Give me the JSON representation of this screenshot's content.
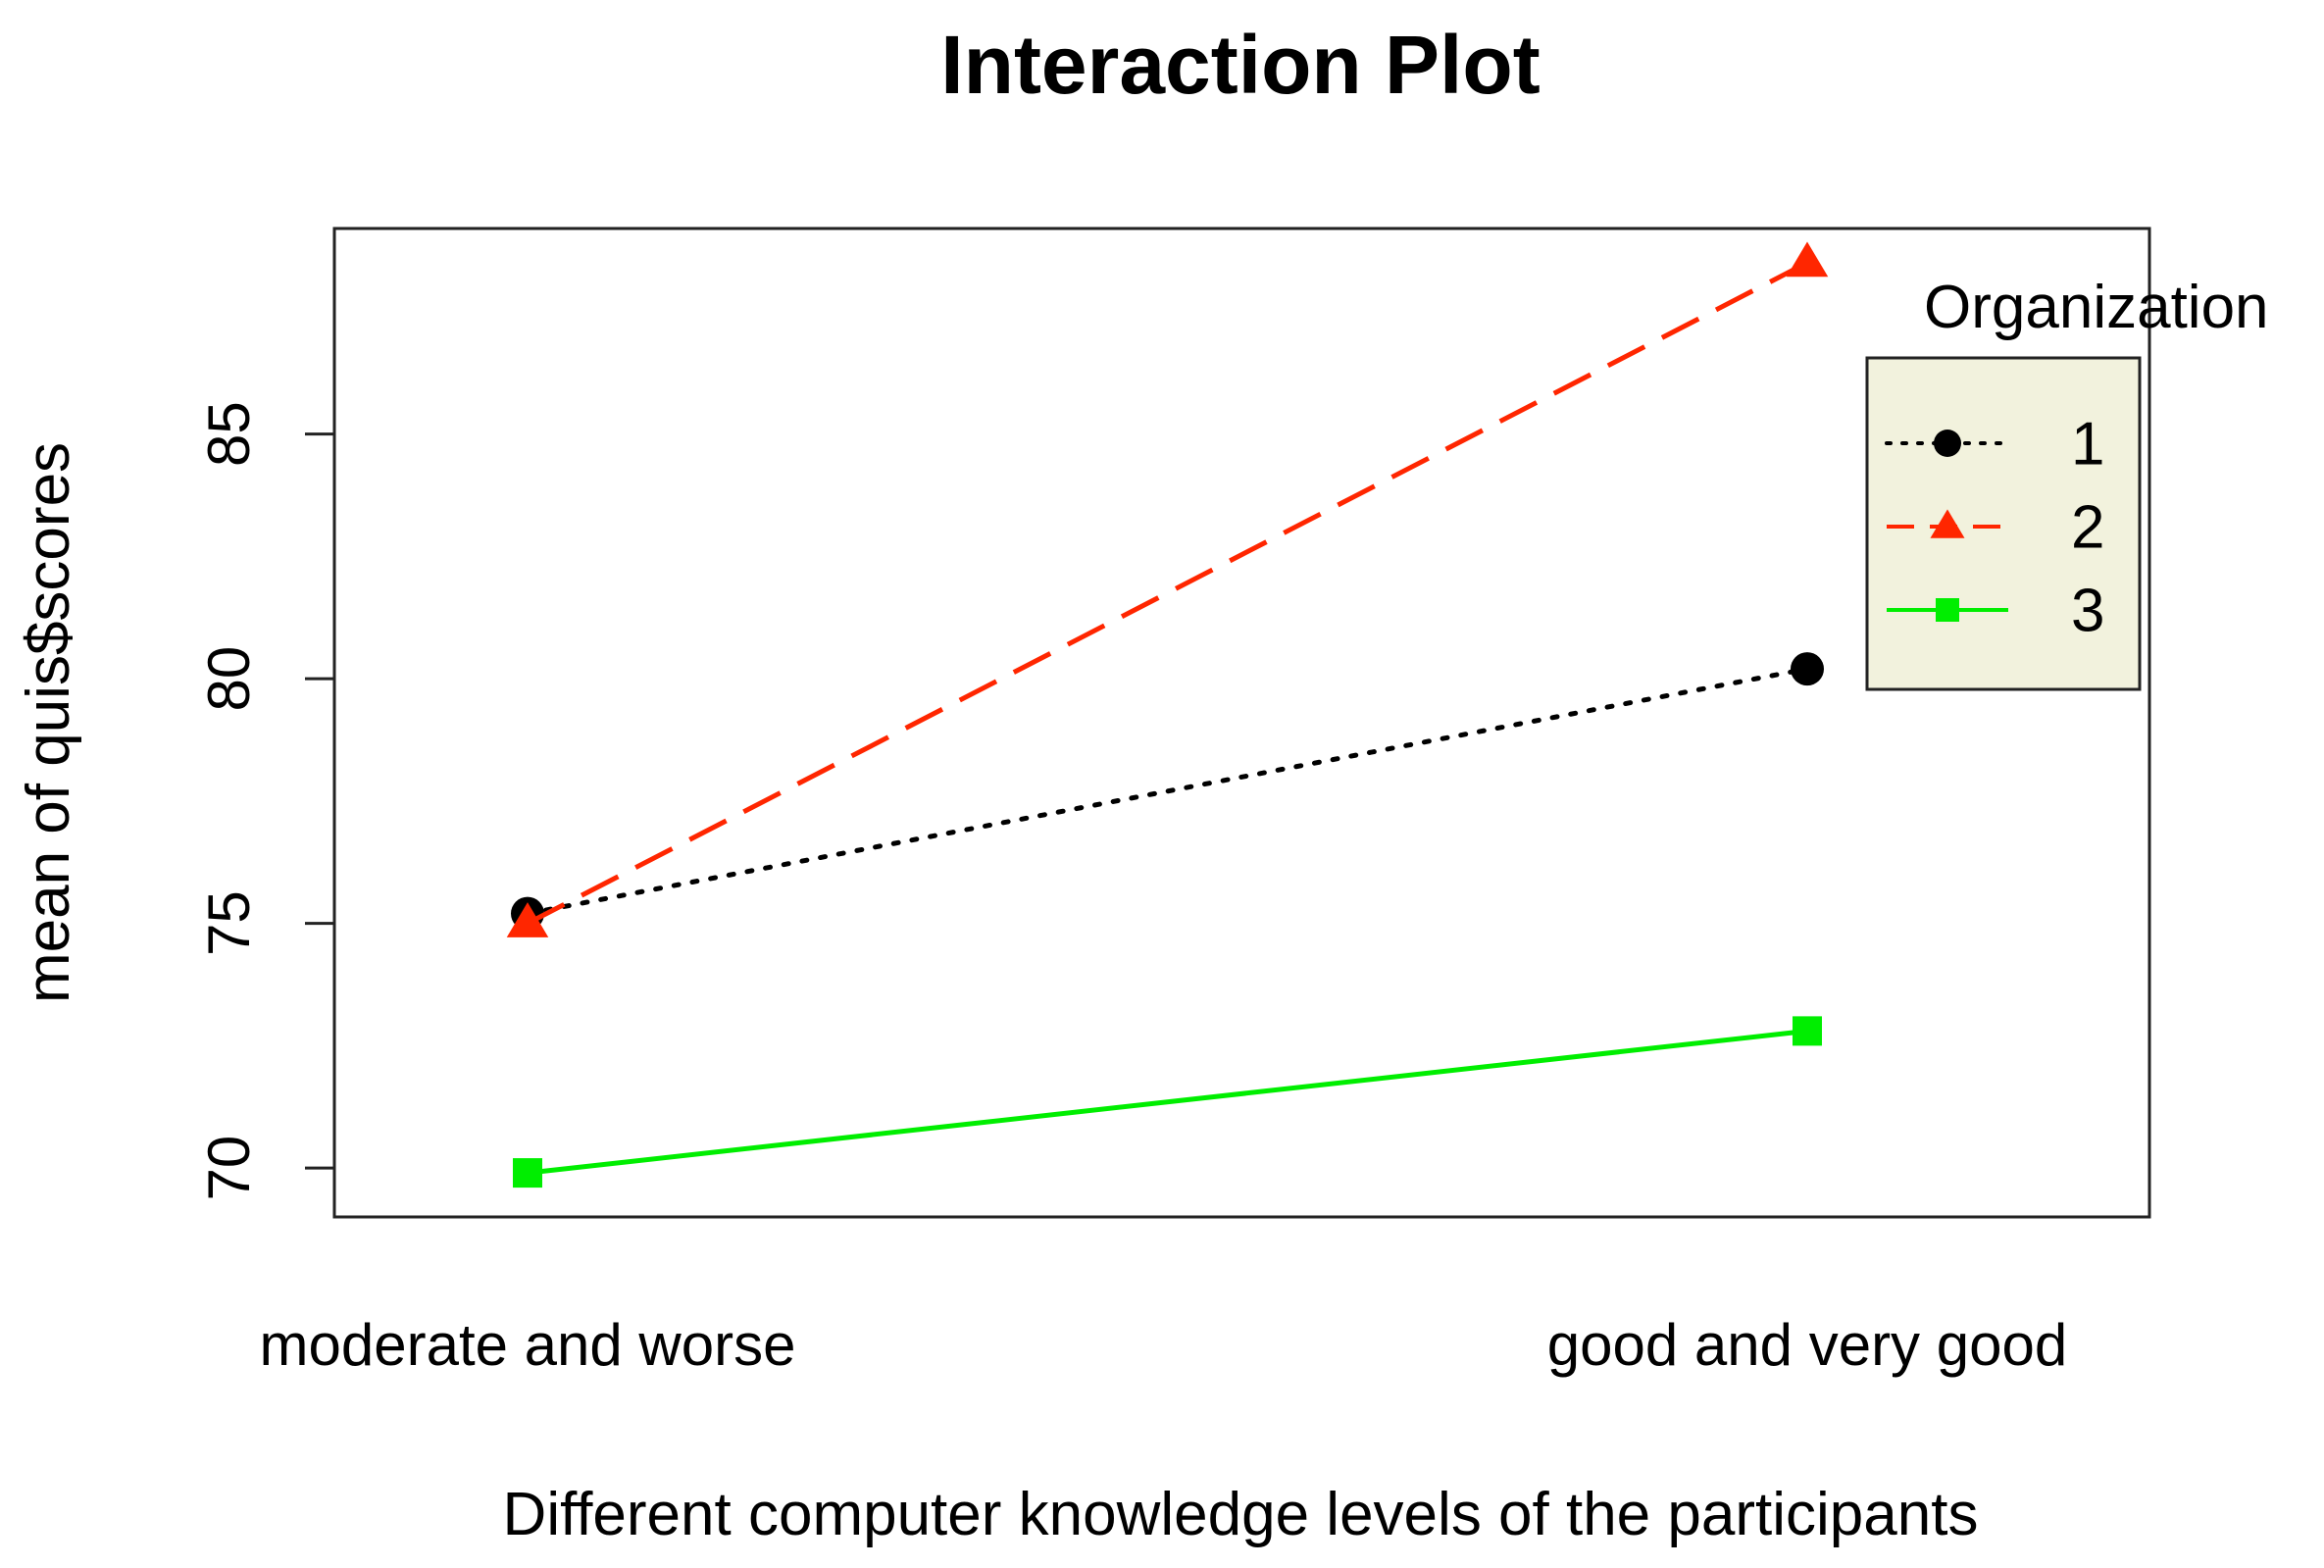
{
  "chart_data": {
    "type": "line",
    "title": "Interaction Plot",
    "xlabel": "Different computer knowledge levels of the participants",
    "ylabel": "mean of  quis$scores",
    "categories": [
      "moderate and worse",
      "good and very good"
    ],
    "ylim": [
      69,
      89.2
    ],
    "yticks": [
      70,
      75,
      80,
      85
    ],
    "grid": false,
    "legend": {
      "title": "Organization",
      "position": "top-right"
    },
    "series": [
      {
        "name": "1",
        "values": [
          75.2,
          80.2
        ],
        "color": "#000000",
        "line_style": "dotted",
        "marker": "circle"
      },
      {
        "name": "2",
        "values": [
          75.0,
          88.5
        ],
        "color": "#ff2600",
        "line_style": "dashed",
        "marker": "triangle"
      },
      {
        "name": "3",
        "values": [
          69.9,
          72.8
        ],
        "color": "#00ee00",
        "line_style": "solid",
        "marker": "square"
      }
    ],
    "legend_background": "#f2f2dd"
  }
}
